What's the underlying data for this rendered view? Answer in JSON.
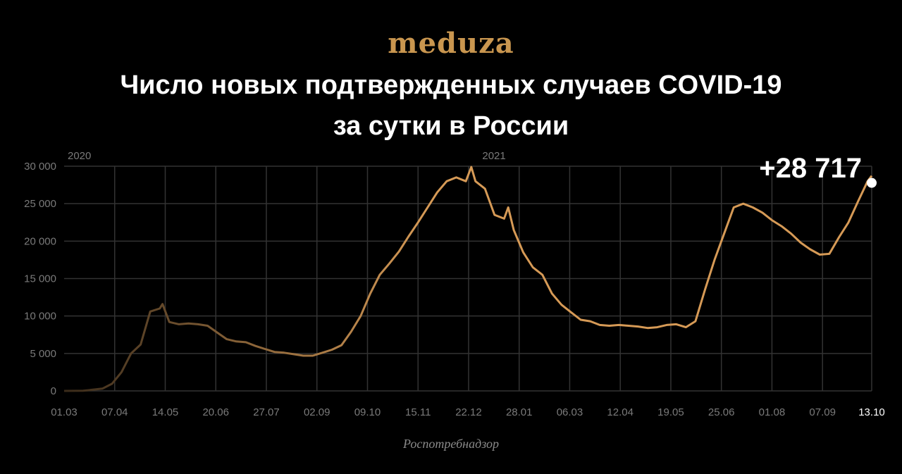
{
  "logo": "meduza",
  "title_line1": "Число новых подтвержденных случаев COVID-19",
  "title_line2": "за сутки в России",
  "source": "Роспотребнадзор",
  "chart_data": {
    "type": "line",
    "title": "Число новых подтвержденных случаев COVID-19 за сутки в России",
    "xlabel": "",
    "ylabel": "",
    "ylim": [
      0,
      30000
    ],
    "grid": true,
    "line_color_start": "#3a2b1a",
    "line_color_end": "#d69a56",
    "y_ticks": [
      "0",
      "5 000",
      "10 000",
      "15 000",
      "20 000",
      "25 000",
      "30 000"
    ],
    "y_tick_values": [
      0,
      5000,
      10000,
      15000,
      20000,
      25000,
      30000
    ],
    "x_ticks": [
      "01.03",
      "07.04",
      "14.05",
      "20.06",
      "27.07",
      "02.09",
      "09.10",
      "15.11",
      "22.12",
      "28.01",
      "06.03",
      "12.04",
      "19.05",
      "25.06",
      "01.08",
      "07.09",
      "13.10"
    ],
    "x_tick_dates": [
      "2020-03-01",
      "2020-04-07",
      "2020-05-14",
      "2020-06-20",
      "2020-07-27",
      "2020-09-02",
      "2020-10-09",
      "2020-11-15",
      "2020-12-22",
      "2021-01-28",
      "2021-03-06",
      "2021-04-12",
      "2021-05-19",
      "2021-06-25",
      "2021-08-01",
      "2021-09-07",
      "2021-10-13"
    ],
    "year_labels": [
      {
        "label": "2020",
        "date": "2020-03-01"
      },
      {
        "label": "2021",
        "date": "2021-01-01"
      }
    ],
    "annotation": {
      "text": "+28 717",
      "date": "2021-10-13",
      "value": 28717
    },
    "x": [
      "2020-03-01",
      "2020-03-15",
      "2020-03-29",
      "2020-04-05",
      "2020-04-12",
      "2020-04-19",
      "2020-04-26",
      "2020-05-03",
      "2020-05-10",
      "2020-05-12",
      "2020-05-17",
      "2020-05-24",
      "2020-05-31",
      "2020-06-07",
      "2020-06-14",
      "2020-06-21",
      "2020-06-28",
      "2020-07-05",
      "2020-07-12",
      "2020-07-19",
      "2020-07-26",
      "2020-08-02",
      "2020-08-09",
      "2020-08-16",
      "2020-08-23",
      "2020-08-30",
      "2020-09-06",
      "2020-09-13",
      "2020-09-20",
      "2020-09-27",
      "2020-10-04",
      "2020-10-11",
      "2020-10-18",
      "2020-10-25",
      "2020-11-01",
      "2020-11-08",
      "2020-11-15",
      "2020-11-22",
      "2020-11-29",
      "2020-12-06",
      "2020-12-13",
      "2020-12-20",
      "2020-12-24",
      "2020-12-27",
      "2021-01-03",
      "2021-01-10",
      "2021-01-17",
      "2021-01-20",
      "2021-01-24",
      "2021-01-31",
      "2021-02-07",
      "2021-02-14",
      "2021-02-21",
      "2021-02-28",
      "2021-03-07",
      "2021-03-14",
      "2021-03-21",
      "2021-03-28",
      "2021-04-04",
      "2021-04-11",
      "2021-04-18",
      "2021-04-25",
      "2021-05-02",
      "2021-05-09",
      "2021-05-16",
      "2021-05-23",
      "2021-05-30",
      "2021-06-06",
      "2021-06-13",
      "2021-06-20",
      "2021-06-27",
      "2021-07-04",
      "2021-07-11",
      "2021-07-18",
      "2021-07-25",
      "2021-08-01",
      "2021-08-08",
      "2021-08-15",
      "2021-08-22",
      "2021-08-29",
      "2021-09-05",
      "2021-09-12",
      "2021-09-19",
      "2021-09-26",
      "2021-10-03",
      "2021-10-10",
      "2021-10-13"
    ],
    "values": [
      0,
      20,
      300,
      950,
      2500,
      5000,
      6200,
      10600,
      11000,
      11600,
      9200,
      8900,
      9000,
      8900,
      8700,
      7800,
      6900,
      6600,
      6500,
      6000,
      5600,
      5200,
      5100,
      4900,
      4700,
      4700,
      5100,
      5500,
      6100,
      7900,
      10000,
      13000,
      15500,
      17000,
      18600,
      20600,
      22500,
      24500,
      26500,
      28000,
      28500,
      28000,
      29900,
      28000,
      27000,
      23500,
      23000,
      24500,
      21500,
      18500,
      16500,
      15500,
      13000,
      11500,
      10500,
      9500,
      9300,
      8800,
      8700,
      8800,
      8700,
      8600,
      8400,
      8500,
      8800,
      8900,
      8500,
      9300,
      13500,
      17500,
      21000,
      24500,
      25000,
      24500,
      23800,
      22800,
      22000,
      21000,
      19800,
      18900,
      18200,
      18300,
      20500,
      22500,
      25300,
      28000,
      28717
    ]
  }
}
